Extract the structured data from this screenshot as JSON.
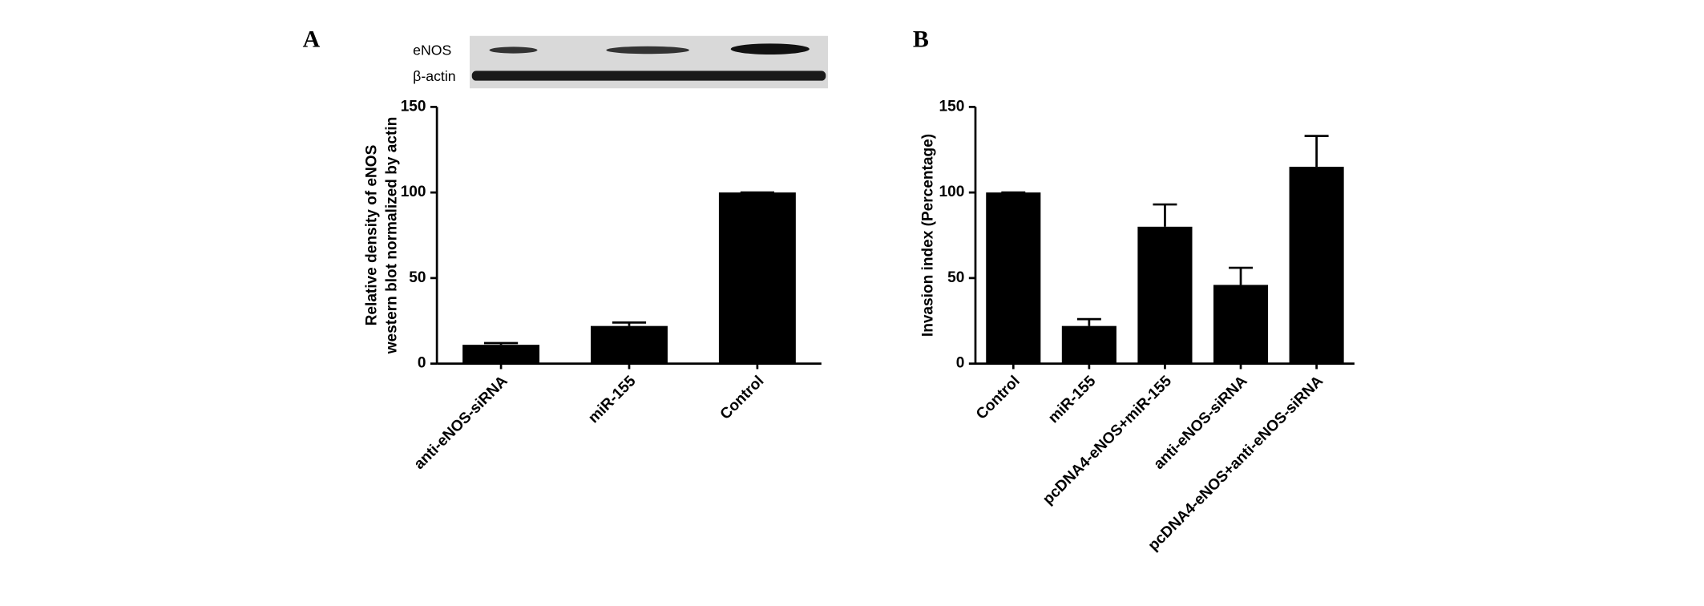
{
  "chart_data": [
    {
      "type": "bar",
      "panel": "A",
      "blot_labels": [
        "eNOS",
        "β-actin"
      ],
      "ylabel": [
        "Relative density of  eNOS",
        "western blot normalized by actin"
      ],
      "categories": [
        "anti-eNOS-siRNA",
        "miR-155",
        "Control"
      ],
      "values": [
        11,
        22,
        100
      ],
      "errors": [
        1,
        2,
        0
      ],
      "color": "#000000",
      "ylim": [
        0,
        150
      ],
      "yticks": [
        0,
        50,
        100,
        150
      ]
    },
    {
      "type": "bar",
      "panel": "B",
      "ylabel": [
        "Invasion index (Percentage)"
      ],
      "categories": [
        "Control",
        "miR-155",
        "pcDNA4-eNOS+miR-155",
        "anti-eNOS-siRNA",
        "pcDNA4-eNOS+anti-eNOS-siRNA"
      ],
      "values": [
        100,
        22,
        80,
        46,
        115
      ],
      "errors": [
        0,
        4,
        13,
        10,
        18
      ],
      "color": "#000000",
      "ylim": [
        0,
        150
      ],
      "yticks": [
        0,
        50,
        100,
        150
      ]
    }
  ]
}
